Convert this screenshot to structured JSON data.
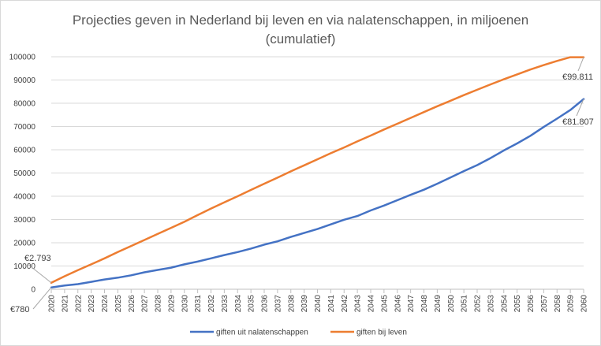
{
  "chart_data": {
    "type": "line",
    "title_line1": "Projecties geven in Nederland bij leven en via nalatenschappen, in miljoenen",
    "title_line2": "(cumulatief)",
    "xlabel": "",
    "ylabel": "",
    "ylim": [
      0,
      100000
    ],
    "yticks": [
      0,
      10000,
      20000,
      30000,
      40000,
      50000,
      60000,
      70000,
      80000,
      90000,
      100000
    ],
    "ytick_labels": [
      "0",
      "10000",
      "20000",
      "30000",
      "40000",
      "50000",
      "60000",
      "70000",
      "80000",
      "90000",
      "100000"
    ],
    "grid": true,
    "legend_position": "bottom",
    "categories": [
      "2020",
      "2021",
      "2022",
      "2023",
      "2024",
      "2025",
      "2026",
      "2027",
      "2028",
      "2029",
      "2030",
      "2031",
      "2032",
      "2033",
      "2034",
      "2035",
      "2036",
      "2037",
      "2038",
      "2039",
      "2040",
      "2041",
      "2042",
      "2043",
      "2044",
      "2045",
      "2046",
      "2047",
      "2048",
      "2049",
      "2050",
      "2051",
      "2052",
      "2053",
      "2054",
      "2055",
      "2056",
      "2057",
      "2058",
      "2059",
      "2060"
    ],
    "series": [
      {
        "name": "giften uit nalatenschappen",
        "color": "#4472c4",
        "values": [
          780,
          1600,
          2200,
          3200,
          4200,
          5000,
          6000,
          7300,
          8300,
          9300,
          10700,
          11900,
          13300,
          14700,
          16000,
          17500,
          19200,
          20600,
          22500,
          24200,
          25900,
          27900,
          29900,
          31500,
          33900,
          36000,
          38300,
          40600,
          42800,
          45400,
          48100,
          50800,
          53400,
          56400,
          59700,
          62700,
          66000,
          69800,
          73400,
          77100,
          81807
        ]
      },
      {
        "name": "giften bij leven",
        "color": "#ed7d31",
        "values": [
          2793,
          5600,
          8200,
          10700,
          13300,
          16000,
          18600,
          21200,
          23800,
          26400,
          29000,
          31900,
          34700,
          37400,
          40000,
          42700,
          45400,
          48000,
          50700,
          53300,
          55900,
          58500,
          61000,
          63600,
          66100,
          68700,
          71200,
          73700,
          76200,
          78700,
          81100,
          83500,
          85800,
          88100,
          90300,
          92400,
          94500,
          96400,
          98200,
          99800,
          99811
        ]
      }
    ],
    "annotations": [
      {
        "text": "€2.793",
        "series": 1,
        "index": 0
      },
      {
        "text": "€780",
        "series": 0,
        "index": 0
      },
      {
        "text": "€99.811",
        "series": 1,
        "index": 40
      },
      {
        "text": "€81.807",
        "series": 0,
        "index": 40
      }
    ]
  }
}
